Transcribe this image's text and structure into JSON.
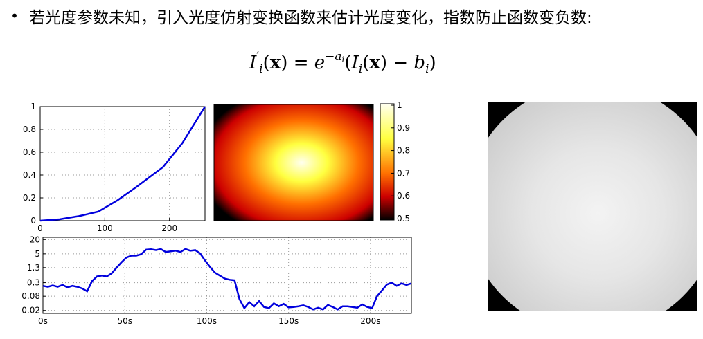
{
  "slide": {
    "bullet": "•",
    "text": "若光度参数未知，引入光度仿射变换函数来估计光度变化，指数防止函数变负数:",
    "formula": {
      "I": "I",
      "prime": "′",
      "i": "i",
      "x": "x",
      "eq": "=",
      "e": "e",
      "neg": "−",
      "a": "a",
      "b": "b",
      "lparen": "(",
      "rparen": ")",
      "minus": "−"
    }
  },
  "colormap": {
    "ticks": [
      "1",
      "0.9",
      "0.8",
      "0.7",
      "0.6",
      "0.5"
    ],
    "colors": {
      "high": "#fffff0",
      "mid_high": "#ffff40",
      "mid": "#ff7000",
      "low": "#cc0000",
      "lowest": "#000000"
    }
  },
  "chart_data": [
    {
      "type": "line",
      "title": "",
      "xlabel": "",
      "ylabel": "",
      "xlim": [
        0,
        255
      ],
      "ylim": [
        0,
        1
      ],
      "xticks": [
        "0",
        "100",
        "200"
      ],
      "yticks": [
        "0",
        "0.2",
        "0.4",
        "0.6",
        "0.8",
        "1"
      ],
      "grid": true,
      "series": [
        {
          "color": "#0000dd",
          "x": [
            0,
            30,
            60,
            90,
            120,
            150,
            190,
            220,
            255
          ],
          "y": [
            0,
            0.012,
            0.04,
            0.08,
            0.18,
            0.3,
            0.47,
            0.68,
            1.0
          ]
        }
      ]
    },
    {
      "type": "line",
      "title": "",
      "xlabel": "",
      "ylabel": "",
      "xlim": [
        0,
        225
      ],
      "yscale": "log",
      "ylim": [
        0.015,
        25
      ],
      "xticks": [
        "0s",
        "50s",
        "100s",
        "150s",
        "200s"
      ],
      "yticks": [
        "0.02",
        "0.08",
        "0.3",
        "1.3",
        "5",
        "20"
      ],
      "grid": true,
      "series": [
        {
          "color": "#0000dd",
          "x": [
            0,
            3,
            6,
            9,
            12,
            15,
            18,
            21,
            24,
            27,
            30,
            33,
            36,
            39,
            42,
            45,
            48,
            51,
            54,
            57,
            60,
            63,
            66,
            69,
            72,
            75,
            78,
            81,
            84,
            87,
            90,
            93,
            96,
            99,
            102,
            105,
            108,
            111,
            114,
            117,
            120,
            123,
            126,
            129,
            132,
            135,
            138,
            141,
            144,
            147,
            150,
            153,
            156,
            159,
            162,
            165,
            168,
            171,
            174,
            177,
            180,
            183,
            186,
            189,
            192,
            195,
            198,
            201,
            204,
            207,
            210,
            213,
            216,
            219,
            222,
            225
          ],
          "y": [
            0.22,
            0.2,
            0.23,
            0.2,
            0.24,
            0.19,
            0.22,
            0.2,
            0.17,
            0.13,
            0.35,
            0.55,
            0.6,
            0.55,
            0.75,
            1.3,
            2.2,
            3.5,
            4.2,
            4.2,
            4.8,
            7.5,
            7.8,
            7.2,
            8.0,
            6.0,
            6.4,
            6.8,
            6.0,
            8.0,
            6.8,
            7.2,
            5.2,
            2.6,
            1.4,
            0.8,
            0.6,
            0.45,
            0.4,
            0.38,
            0.06,
            0.025,
            0.045,
            0.03,
            0.05,
            0.028,
            0.025,
            0.04,
            0.03,
            0.038,
            0.027,
            0.028,
            0.03,
            0.033,
            0.028,
            0.022,
            0.026,
            0.022,
            0.034,
            0.028,
            0.022,
            0.03,
            0.03,
            0.028,
            0.026,
            0.036,
            0.028,
            0.025,
            0.08,
            0.14,
            0.25,
            0.3,
            0.22,
            0.28,
            0.24,
            0.28
          ]
        }
      ]
    }
  ]
}
